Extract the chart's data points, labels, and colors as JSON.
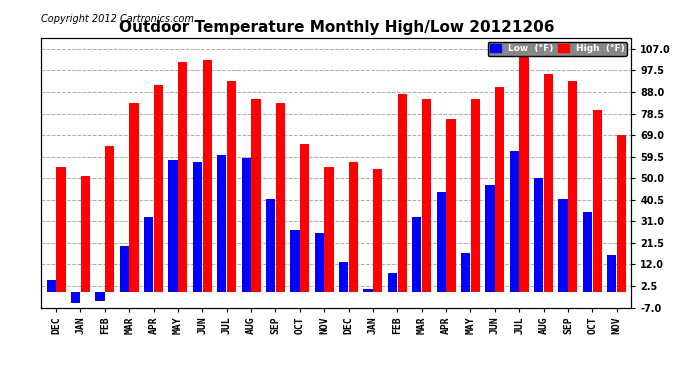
{
  "title": "Outdoor Temperature Monthly High/Low 20121206",
  "copyright": "Copyright 2012 Cartronics.com",
  "legend_low": "Low  (°F)",
  "legend_high": "High  (°F)",
  "categories": [
    "DEC",
    "JAN",
    "FEB",
    "MAR",
    "APR",
    "MAY",
    "JUN",
    "JUL",
    "AUG",
    "SEP",
    "OCT",
    "NOV",
    "DEC",
    "JAN",
    "FEB",
    "MAR",
    "APR",
    "MAY",
    "JUN",
    "JUL",
    "AUG",
    "SEP",
    "OCT",
    "NOV"
  ],
  "high_values": [
    55,
    51,
    64,
    83,
    91,
    101,
    102,
    93,
    85,
    83,
    65,
    55,
    57,
    54,
    87,
    85,
    76,
    85,
    90,
    107,
    96,
    93,
    80,
    69
  ],
  "low_values": [
    5,
    -5,
    -4,
    20,
    33,
    58,
    57,
    60,
    59,
    41,
    27,
    26,
    13,
    1,
    8,
    33,
    44,
    17,
    47,
    62,
    50,
    41,
    35,
    16
  ],
  "ylim": [
    -7,
    112
  ],
  "yticks": [
    -7.0,
    2.5,
    12.0,
    21.5,
    31.0,
    40.5,
    50.0,
    59.5,
    69.0,
    78.5,
    88.0,
    97.5,
    107.0
  ],
  "color_high": "#ff0000",
  "color_low": "#0000ff",
  "background_color": "#ffffff",
  "grid_color": "#aaaaaa",
  "bar_width": 0.38,
  "title_fontsize": 11,
  "tick_fontsize": 7,
  "copyright_fontsize": 7
}
